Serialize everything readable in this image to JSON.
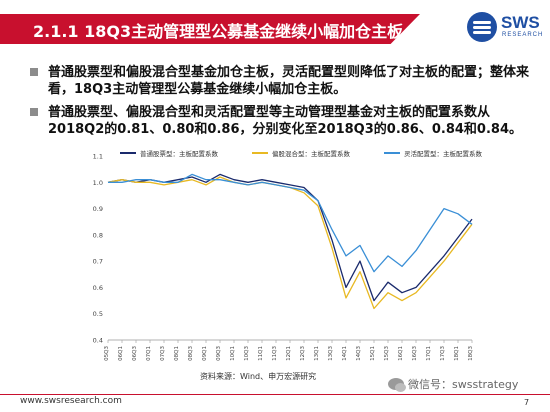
{
  "header": {
    "title": "2.1.1 18Q3主动管理型公募基金继续小幅加仓主板",
    "logo": {
      "name": "SWS",
      "subtitle": "RESEARCH",
      "color": "#1f4fa3"
    },
    "accent_color": "#c8102e"
  },
  "bullets": [
    "普通股票型和偏股混合型基金加仓主板，灵活配置型则降低了对主板的配置；整体来看，18Q3主动管理型公募基金继续小幅加仓主板。",
    "普通股票型、偏股混合型和灵活配置型等主动管理型基金对主板的配置系数从2018Q2的0.81、0.80和0.86，分别变化至2018Q3的0.86、0.84和0.84。"
  ],
  "chart_data": {
    "type": "line",
    "title": "",
    "xlabel": "",
    "ylabel": "",
    "ylim": [
      0.4,
      1.1
    ],
    "yticks": [
      0.4,
      0.5,
      0.6,
      0.7,
      0.8,
      0.9,
      1.0,
      1.1
    ],
    "x": [
      "05Q3",
      "06Q1",
      "06Q3",
      "07Q1",
      "07Q3",
      "08Q1",
      "08Q3",
      "09Q1",
      "09Q3",
      "10Q1",
      "10Q3",
      "11Q1",
      "11Q3",
      "12Q1",
      "12Q3",
      "13Q1",
      "13Q3",
      "14Q1",
      "14Q3",
      "15Q1",
      "15Q3",
      "16Q1",
      "16Q3",
      "17Q1",
      "17Q3",
      "18Q1",
      "18Q3"
    ],
    "legend_position": "top",
    "series": [
      {
        "name": "普通股票型：主板配置系数",
        "color": "#1a2a6c",
        "values": [
          1.0,
          1.01,
          1.0,
          1.01,
          1.0,
          1.01,
          1.02,
          1.0,
          1.03,
          1.01,
          1.0,
          1.01,
          1.0,
          0.99,
          0.98,
          0.93,
          0.78,
          0.6,
          0.7,
          0.55,
          0.62,
          0.58,
          0.6,
          0.66,
          0.72,
          0.79,
          0.86
        ]
      },
      {
        "name": "偏股混合型：主板配置系数",
        "color": "#e8b923",
        "values": [
          1.0,
          1.01,
          1.0,
          1.0,
          0.99,
          1.0,
          1.01,
          0.99,
          1.02,
          1.0,
          0.99,
          1.0,
          0.99,
          0.98,
          0.96,
          0.91,
          0.75,
          0.56,
          0.66,
          0.52,
          0.58,
          0.55,
          0.58,
          0.64,
          0.7,
          0.77,
          0.84
        ]
      },
      {
        "name": "灵活配置型：主板配置系数",
        "color": "#3a8fd6",
        "values": [
          1.0,
          1.0,
          1.01,
          1.01,
          1.0,
          1.0,
          1.03,
          1.01,
          1.01,
          1.0,
          0.99,
          1.0,
          0.99,
          0.98,
          0.97,
          0.93,
          0.82,
          0.72,
          0.76,
          0.66,
          0.72,
          0.68,
          0.74,
          0.82,
          0.9,
          0.88,
          0.84
        ]
      }
    ]
  },
  "source": "资料来源：Wind、申万宏源研究",
  "footer": {
    "url": "www.swsresearch.com",
    "page": "7"
  },
  "watermark": "微信号：swsstrategy"
}
